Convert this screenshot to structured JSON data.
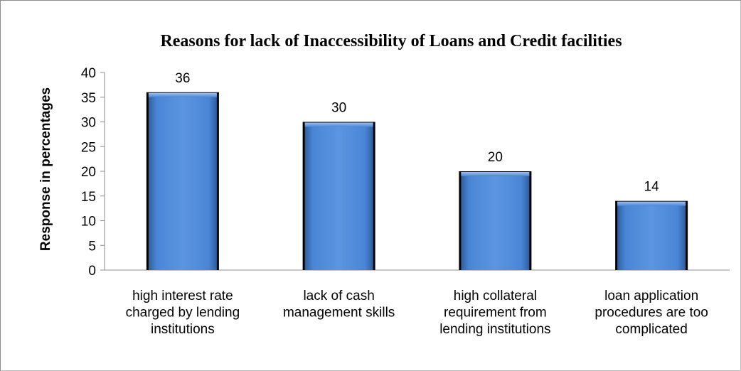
{
  "chart_data": {
    "type": "bar",
    "title": "Reasons for lack of Inaccessibility of Loans and Credit facilities",
    "ylabel": "Response in percentages",
    "xlabel": "",
    "ylim": [
      0,
      40
    ],
    "yticks": [
      0,
      5,
      10,
      15,
      20,
      25,
      30,
      35,
      40
    ],
    "categories": [
      [
        "high interest rate",
        "charged by lending",
        "institutions"
      ],
      [
        "lack of cash",
        "management skills"
      ],
      [
        "high collateral",
        "requirement from",
        "lending institutions"
      ],
      [
        "loan application",
        "procedures are too",
        "complicated"
      ]
    ],
    "values": [
      36,
      30,
      20,
      14
    ],
    "data_labels": [
      "36",
      "30",
      "20",
      "14"
    ],
    "grid": false,
    "legend": "none",
    "colors": {
      "bar": "#4a86d6",
      "bar_light": "#8fb4ea",
      "bar_dark": "#2f5f9e",
      "bar_edge": "#000000",
      "axis": "#8c8c8c"
    }
  }
}
